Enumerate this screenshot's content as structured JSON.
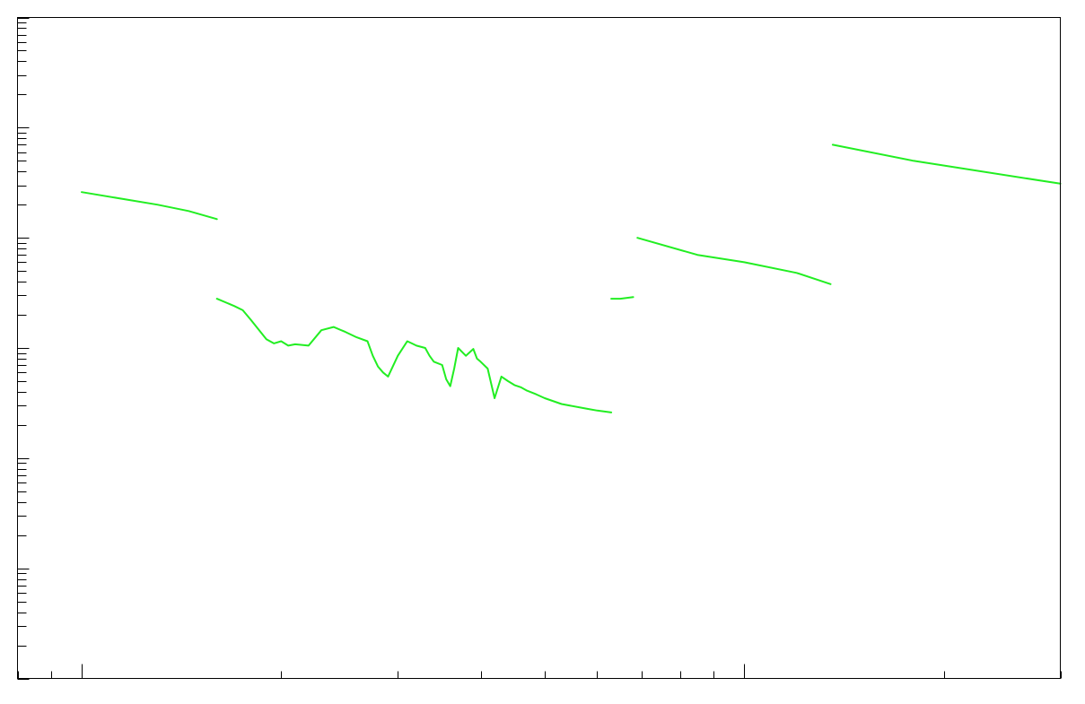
{
  "chart_data": {
    "type": "line",
    "title": "",
    "xlabel": "",
    "ylabel": "",
    "x_scale": "log",
    "y_scale": "log",
    "xlim": [
      0.8,
      30
    ],
    "ylim": [
      0.0001,
      100
    ],
    "grid": false,
    "legend": "none",
    "series_color": "#22ee22",
    "segments": [
      {
        "x": [
          1.0,
          1.3,
          1.45,
          1.6
        ],
        "y": [
          2.6,
          2.0,
          1.75,
          1.48
        ]
      },
      {
        "x": [
          1.6,
          1.7,
          1.75,
          1.8,
          1.9,
          1.95,
          2.0,
          2.05,
          2.1,
          2.2,
          2.3,
          2.4,
          2.5,
          2.6,
          2.7,
          2.75,
          2.8,
          2.85,
          2.9,
          3.0,
          3.1,
          3.15,
          3.2,
          3.3,
          3.35,
          3.4,
          3.5,
          3.55,
          3.6,
          3.65,
          3.7,
          3.8,
          3.9,
          3.95,
          4.0,
          4.1,
          4.2,
          4.3,
          4.4,
          4.5,
          4.6,
          4.7,
          4.85,
          5.0,
          5.3,
          5.8,
          6.0,
          6.3
        ],
        "y": [
          0.28,
          0.24,
          0.22,
          0.18,
          0.12,
          0.11,
          0.115,
          0.105,
          0.108,
          0.105,
          0.145,
          0.155,
          0.14,
          0.125,
          0.115,
          0.085,
          0.068,
          0.06,
          0.055,
          0.085,
          0.115,
          0.11,
          0.105,
          0.1,
          0.085,
          0.075,
          0.07,
          0.052,
          0.045,
          0.065,
          0.1,
          0.085,
          0.098,
          0.08,
          0.075,
          0.065,
          0.035,
          0.055,
          0.05,
          0.046,
          0.044,
          0.041,
          0.038,
          0.035,
          0.031,
          0.028,
          0.027,
          0.026
        ]
      },
      {
        "x": [
          6.3,
          6.5,
          6.8
        ],
        "y": [
          0.28,
          0.28,
          0.29
        ]
      },
      {
        "x": [
          6.9,
          8.5,
          10.0,
          12.0,
          13.5
        ],
        "y": [
          1.0,
          0.7,
          0.6,
          0.48,
          0.38
        ]
      },
      {
        "x": [
          13.6,
          18.0,
          30.0
        ],
        "y": [
          7.0,
          5.0,
          3.1
        ]
      }
    ]
  }
}
